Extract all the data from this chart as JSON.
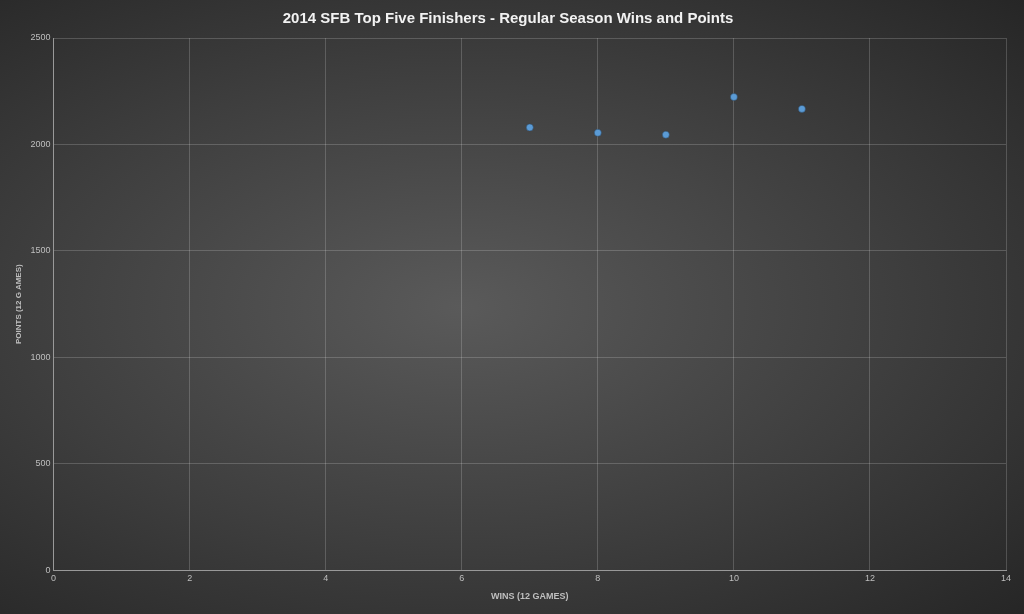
{
  "chart_data": {
    "type": "scatter",
    "title": "2014 SFB Top Five Finishers - Regular Season Wins and Points",
    "xlabel": "WINS (12 GAMES)",
    "ylabel": "POINTS (12 G AMES)",
    "x": [
      7,
      8,
      9,
      10,
      11
    ],
    "series": [
      {
        "color": "#5b9bd5",
        "values": [
          2080,
          2055,
          2046,
          2223,
          2167
        ]
      }
    ],
    "xlim": [
      0,
      14
    ],
    "xticks": [
      0,
      2,
      4,
      6,
      8,
      10,
      12,
      14
    ],
    "ylim": [
      0,
      2500
    ],
    "yticks": [
      0,
      500,
      1000,
      1500,
      2000,
      2500
    ],
    "grid": true,
    "legend": false,
    "marker": "circle"
  }
}
